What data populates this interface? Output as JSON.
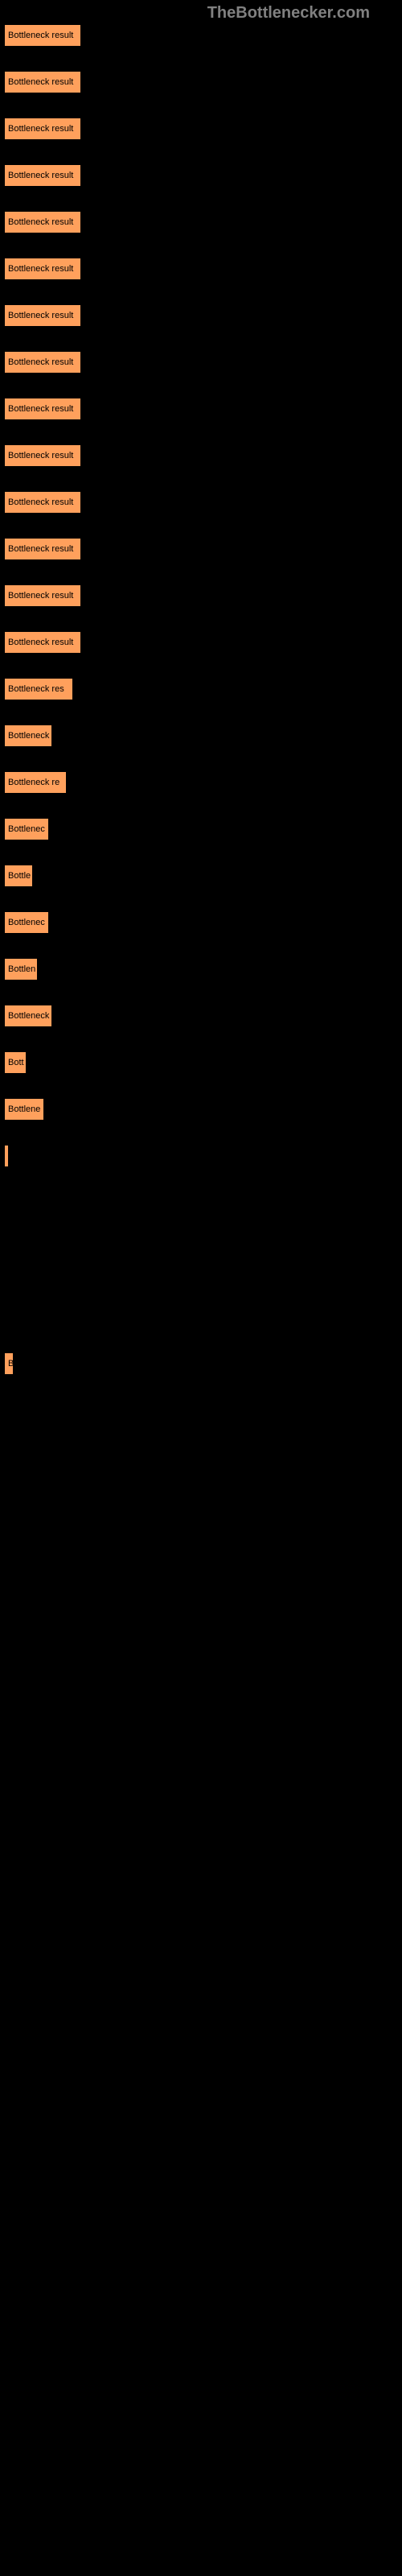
{
  "watermark": "TheBottlenecker.com",
  "chart": {
    "type": "bar",
    "background_color": "#000000",
    "bar_color": "#ffa05c",
    "bar_border_color": "#000000",
    "text_color": "#000000",
    "bars": [
      {
        "label": "Bottleneck result",
        "width": 96
      },
      {
        "label": "Bottleneck result",
        "width": 96
      },
      {
        "label": "Bottleneck result",
        "width": 96
      },
      {
        "label": "Bottleneck result",
        "width": 96
      },
      {
        "label": "Bottleneck result",
        "width": 96
      },
      {
        "label": "Bottleneck result",
        "width": 96
      },
      {
        "label": "Bottleneck result",
        "width": 96
      },
      {
        "label": "Bottleneck result",
        "width": 96
      },
      {
        "label": "Bottleneck result",
        "width": 96
      },
      {
        "label": "Bottleneck result",
        "width": 96
      },
      {
        "label": "Bottleneck result",
        "width": 96
      },
      {
        "label": "Bottleneck result",
        "width": 96
      },
      {
        "label": "Bottleneck result",
        "width": 96
      },
      {
        "label": "Bottleneck result",
        "width": 96
      },
      {
        "label": "Bottleneck res",
        "width": 86
      },
      {
        "label": "Bottleneck",
        "width": 60
      },
      {
        "label": "Bottleneck re",
        "width": 78
      },
      {
        "label": "Bottlenec",
        "width": 56
      },
      {
        "label": "Bottle",
        "width": 36
      },
      {
        "label": "Bottlenec",
        "width": 56
      },
      {
        "label": "Bottlen",
        "width": 42
      },
      {
        "label": "Bottleneck",
        "width": 60
      },
      {
        "label": "Bott",
        "width": 28
      },
      {
        "label": "Bottlene",
        "width": 50
      },
      {
        "label": "",
        "width": 6
      },
      {
        "label": "B",
        "width": 12
      }
    ]
  }
}
